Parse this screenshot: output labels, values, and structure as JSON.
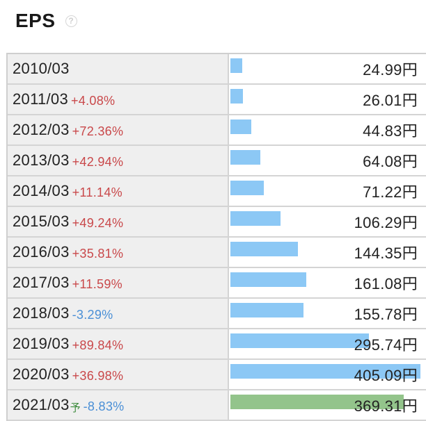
{
  "header": {
    "title": "EPS",
    "help_symbol": "?"
  },
  "colors": {
    "actual_bar": "#8cc8f5",
    "forecast_bar": "#93c48b",
    "positive_change": "#c9484a",
    "negative_change": "#4a8fd6"
  },
  "chart_data": {
    "type": "bar",
    "orientation": "horizontal",
    "title": "EPS",
    "unit": "円",
    "categories": [
      "2010/03",
      "2011/03",
      "2012/03",
      "2013/03",
      "2014/03",
      "2015/03",
      "2016/03",
      "2017/03",
      "2018/03",
      "2019/03",
      "2020/03",
      "2021/03"
    ],
    "values": [
      24.99,
      26.01,
      44.83,
      64.08,
      71.22,
      106.29,
      144.35,
      161.08,
      155.78,
      295.74,
      405.09,
      369.31
    ],
    "xlim": [
      0,
      405.09
    ],
    "rows": [
      {
        "period": "2010/03",
        "change": "",
        "value": 24.99,
        "value_label": "24.99円",
        "forecast": false
      },
      {
        "period": "2011/03",
        "change": "+4.08%",
        "value": 26.01,
        "value_label": "26.01円",
        "forecast": false
      },
      {
        "period": "2012/03",
        "change": "+72.36%",
        "value": 44.83,
        "value_label": "44.83円",
        "forecast": false
      },
      {
        "period": "2013/03",
        "change": "+42.94%",
        "value": 64.08,
        "value_label": "64.08円",
        "forecast": false
      },
      {
        "period": "2014/03",
        "change": "+11.14%",
        "value": 71.22,
        "value_label": "71.22円",
        "forecast": false
      },
      {
        "period": "2015/03",
        "change": "+49.24%",
        "value": 106.29,
        "value_label": "106.29円",
        "forecast": false
      },
      {
        "period": "2016/03",
        "change": "+35.81%",
        "value": 144.35,
        "value_label": "144.35円",
        "forecast": false
      },
      {
        "period": "2017/03",
        "change": "+11.59%",
        "value": 161.08,
        "value_label": "161.08円",
        "forecast": false
      },
      {
        "period": "2018/03",
        "change": "-3.29%",
        "value": 155.78,
        "value_label": "155.78円",
        "forecast": false
      },
      {
        "period": "2019/03",
        "change": "+89.84%",
        "value": 295.74,
        "value_label": "295.74円",
        "forecast": false
      },
      {
        "period": "2020/03",
        "change": "+36.98%",
        "value": 405.09,
        "value_label": "405.09円",
        "forecast": false
      },
      {
        "period": "2021/03",
        "forecast_mark": "予",
        "change": "-8.83%",
        "value": 369.31,
        "value_label": "369.31円",
        "forecast": true
      }
    ]
  }
}
